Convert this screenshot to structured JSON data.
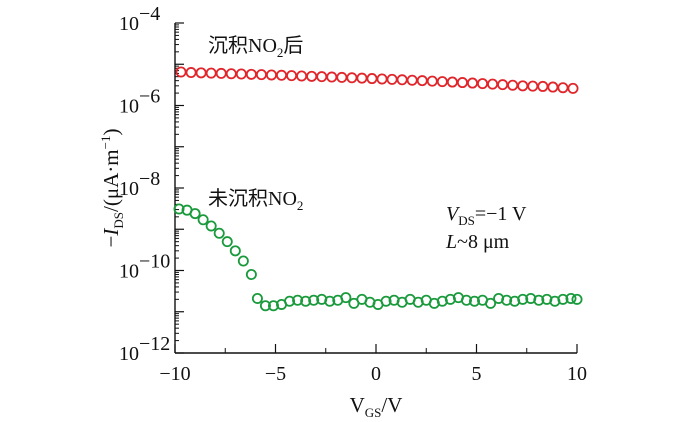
{
  "chart_data": {
    "type": "scatter",
    "title": "",
    "x_label": {
      "main": "V",
      "sub": "GS",
      "tail": "/V"
    },
    "y_label": {
      "prefix": "−",
      "main": "I",
      "sub": "DS",
      "mid": "/(μA·m",
      "sup": "−1",
      "tail": ")"
    },
    "x_lim": [
      -10,
      10
    ],
    "x_ticks": [
      -10,
      -5,
      0,
      5,
      10
    ],
    "x_tick_labels": [
      "−10",
      "−5",
      "0",
      "5",
      "10"
    ],
    "y_scale": "log",
    "y_lim_exponent": [
      -12,
      -4
    ],
    "y_major_exponents": [
      -12,
      -10,
      -8,
      -6,
      -4
    ],
    "y_tick_base": "10",
    "y_tick_exponent_labels": [
      "−12",
      "−10",
      "−8",
      "−6",
      "−4"
    ],
    "series": [
      {
        "name": "沉积NO₂后",
        "label_parts": {
          "pre": "沉积NO",
          "sub": "2",
          "post": "后"
        },
        "color": "#e0262b",
        "x": [
          -9.7,
          -9.2,
          -8.7,
          -8.2,
          -7.7,
          -7.2,
          -6.7,
          -6.2,
          -5.7,
          -5.2,
          -4.7,
          -4.2,
          -3.7,
          -3.2,
          -2.7,
          -2.2,
          -1.7,
          -1.2,
          -0.7,
          -0.2,
          0.3,
          0.8,
          1.3,
          1.8,
          2.3,
          2.8,
          3.3,
          3.8,
          4.3,
          4.8,
          5.3,
          5.8,
          6.3,
          6.8,
          7.3,
          7.8,
          8.3,
          8.8,
          9.3,
          9.8
        ],
        "y": [
          6.5e-06,
          6.3e-06,
          6.2e-06,
          6.1e-06,
          6e-06,
          5.9e-06,
          5.8e-06,
          5.7e-06,
          5.6e-06,
          5.5e-06,
          5.4e-06,
          5.3e-06,
          5.2e-06,
          5.1e-06,
          5e-06,
          4.9e-06,
          4.8e-06,
          4.7e-06,
          4.6e-06,
          4.5e-06,
          4.4e-06,
          4.3e-06,
          4.2e-06,
          4.1e-06,
          4e-06,
          3.9e-06,
          3.8e-06,
          3.7e-06,
          3.6e-06,
          3.5e-06,
          3.4e-06,
          3.3e-06,
          3.2e-06,
          3.1e-06,
          3e-06,
          2.95e-06,
          2.9e-06,
          2.8e-06,
          2.7e-06,
          2.6e-06
        ]
      },
      {
        "name": "未沉积NO₂",
        "label_parts": {
          "pre": "未沉积NO",
          "sub": "2",
          "post": ""
        },
        "color": "#1a9a3c",
        "x": [
          -9.8,
          -9.4,
          -9.0,
          -8.6,
          -8.2,
          -7.8,
          -7.4,
          -7.0,
          -6.6,
          -6.2,
          -5.9,
          -5.5,
          -5.1,
          -4.7,
          -4.3,
          -3.9,
          -3.5,
          -3.1,
          -2.7,
          -2.3,
          -1.9,
          -1.5,
          -1.1,
          -0.7,
          -0.3,
          0.1,
          0.5,
          0.9,
          1.3,
          1.7,
          2.1,
          2.5,
          2.9,
          3.3,
          3.7,
          4.1,
          4.5,
          4.9,
          5.3,
          5.7,
          6.1,
          6.5,
          6.9,
          7.3,
          7.7,
          8.1,
          8.5,
          8.9,
          9.3,
          9.7,
          10.0
        ],
        "y": [
          3.1e-09,
          2.9e-09,
          2.4e-09,
          1.7e-09,
          1.2e-09,
          8e-10,
          5e-10,
          3e-10,
          1.7e-10,
          8e-11,
          2.1e-11,
          1.4e-11,
          1.4e-11,
          1.5e-11,
          1.8e-11,
          1.9e-11,
          1.8e-11,
          1.9e-11,
          2e-11,
          1.8e-11,
          1.9e-11,
          2.2e-11,
          1.6e-11,
          2e-11,
          1.7e-11,
          1.5e-11,
          1.8e-11,
          1.9e-11,
          1.7e-11,
          2e-11,
          1.7e-11,
          1.9e-11,
          1.6e-11,
          1.8e-11,
          2e-11,
          2.2e-11,
          1.9e-11,
          1.8e-11,
          1.9e-11,
          1.6e-11,
          2.1e-11,
          1.9e-11,
          1.8e-11,
          2e-11,
          2.1e-11,
          1.9e-11,
          2e-11,
          1.8e-11,
          2e-11,
          2.1e-11,
          2e-11
        ]
      }
    ],
    "annotations": {
      "vds": {
        "main": "V",
        "sub": "DS",
        "tail": "=−1 V"
      },
      "length": {
        "main": "L",
        "tail": "~8 μm"
      }
    }
  }
}
